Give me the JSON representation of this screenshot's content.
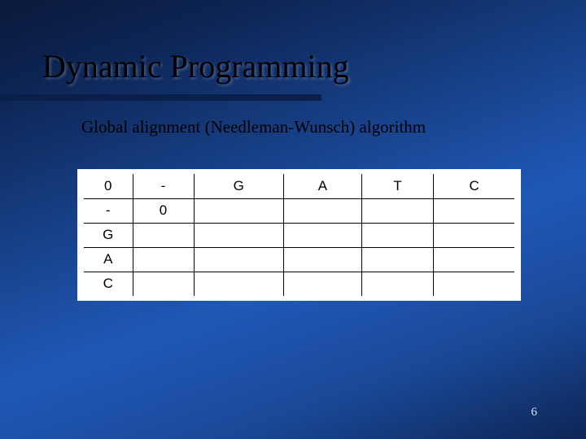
{
  "title": "Dynamic Programming",
  "subtitle": "Global alignment (Needleman-Wunsch) algorithm",
  "table": {
    "col_headers": [
      "0",
      "-",
      "G",
      "A",
      "T",
      "C"
    ],
    "row_headers": [
      "-",
      "G",
      "A",
      "C"
    ],
    "cells": [
      [
        "0",
        "",
        "",
        "",
        "",
        ""
      ],
      [
        "",
        "",
        "",
        "",
        "",
        ""
      ],
      [
        "",
        "",
        "",
        "",
        "",
        ""
      ],
      [
        "",
        "",
        "",
        "",
        "",
        ""
      ]
    ],
    "background_color": "#ffffff",
    "border_color": "#000000",
    "font_family": "Arial",
    "font_size": 17
  },
  "page_number": "6",
  "styling": {
    "slide_width": 720,
    "slide_height": 540,
    "title_fontsize": 40,
    "title_color": "#000000",
    "subtitle_fontsize": 21,
    "subtitle_color": "#000000",
    "underline_color": "#0a1f4a",
    "background_gradient": [
      "#0a1a3a",
      "#0d2555",
      "#1a4896",
      "#2058b8"
    ],
    "page_num_color": "#dbe6f5"
  }
}
